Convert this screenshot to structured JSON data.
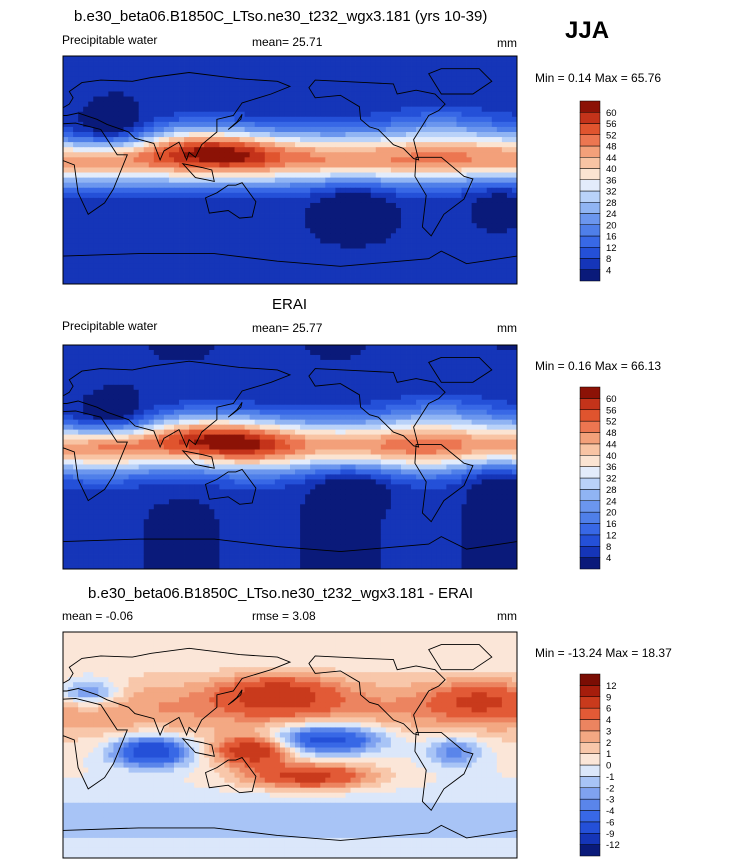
{
  "season": "JJA",
  "panels": [
    {
      "title": "b.e30_beta06.B1850C_LTso.ne30_t232_wgx3.181 (yrs 10-39)",
      "left_label": "Precipitable water",
      "mean_text": "mean=  25.71",
      "rmse_text": "",
      "units": "mm",
      "minmax_text": "Min =   0.14 Max =  65.76"
    },
    {
      "title": "ERAI",
      "left_label": "Precipitable water",
      "mean_text": "mean=  25.77",
      "rmse_text": "",
      "units": "mm",
      "minmax_text": "Min =   0.16 Max =  66.13"
    },
    {
      "title": "b.e30_beta06.B1850C_LTso.ne30_t232_wgx3.181 - ERAI",
      "left_label": "mean =  -0.06",
      "mean_text": "",
      "rmse_text": "rmse =   3.08",
      "units": "mm",
      "minmax_text": "Min = -13.24 Max =  18.37"
    }
  ],
  "chart_data": [
    {
      "type": "heatmap",
      "title": "b.e30_beta06.B1850C_LTso.ne30_t232_wgx3.181 (yrs 10-39)",
      "variable": "Precipitable water",
      "units": "mm",
      "mean": 25.71,
      "min": 0.14,
      "max": 65.76,
      "colorbar_levels": [
        4,
        8,
        12,
        16,
        20,
        24,
        28,
        32,
        36,
        40,
        44,
        48,
        52,
        56,
        60
      ],
      "colorbar_colors": [
        "#0a1a7a",
        "#1535b8",
        "#2450d8",
        "#3868e6",
        "#4f7fe9",
        "#6b96ee",
        "#90b4f3",
        "#b9d2f9",
        "#e3ecfb",
        "#fbe4d2",
        "#f8c4a4",
        "#f3a07a",
        "#ec7651",
        "#e0542e",
        "#c4331a",
        "#8c1206"
      ]
    },
    {
      "type": "heatmap",
      "title": "ERAI",
      "variable": "Precipitable water",
      "units": "mm",
      "mean": 25.77,
      "min": 0.16,
      "max": 66.13,
      "colorbar_levels": [
        4,
        8,
        12,
        16,
        20,
        24,
        28,
        32,
        36,
        40,
        44,
        48,
        52,
        56,
        60
      ],
      "colorbar_colors": [
        "#0a1a7a",
        "#1535b8",
        "#2450d8",
        "#3868e6",
        "#4f7fe9",
        "#6b96ee",
        "#90b4f3",
        "#b9d2f9",
        "#e3ecfb",
        "#fbe4d2",
        "#f8c4a4",
        "#f3a07a",
        "#ec7651",
        "#e0542e",
        "#c4331a",
        "#8c1206"
      ]
    },
    {
      "type": "heatmap",
      "title": "b.e30_beta06.B1850C_LTso.ne30_t232_wgx3.181 - ERAI",
      "variable": "",
      "units": "mm",
      "mean": -0.06,
      "rmse": 3.08,
      "min": -13.24,
      "max": 18.37,
      "colorbar_levels": [
        -12,
        -9,
        -6,
        -4,
        -3,
        -2,
        -1,
        0,
        1,
        2,
        3,
        4,
        6,
        9,
        12
      ],
      "colorbar_colors": [
        "#0a1a7a",
        "#1535b8",
        "#2450d8",
        "#3868e6",
        "#5a85ea",
        "#7fa2f0",
        "#a8c4f6",
        "#dbe7fa",
        "#fbe6d8",
        "#f8c7aa",
        "#f3a883",
        "#ec8460",
        "#e25a36",
        "#c93a1c",
        "#a51d0c",
        "#7a0d04"
      ]
    }
  ]
}
